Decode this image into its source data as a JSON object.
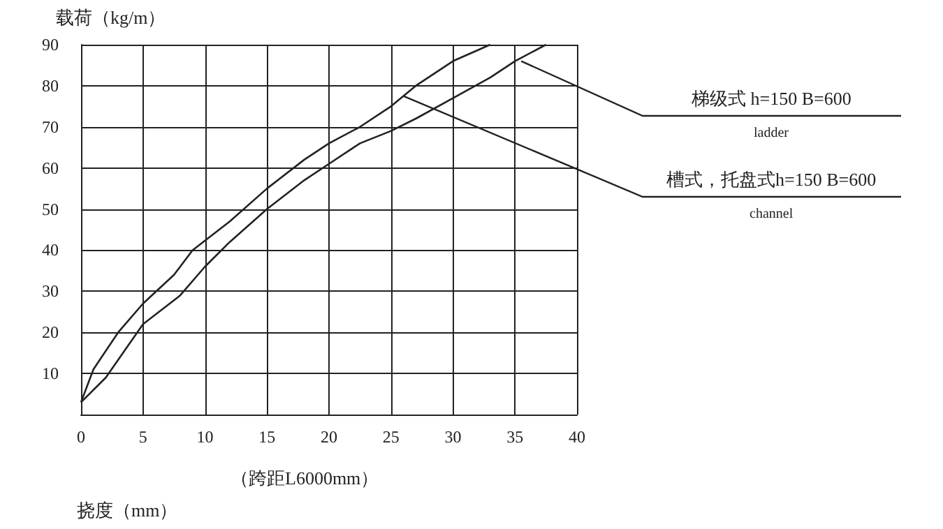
{
  "chart_data": {
    "type": "line",
    "ylabel": "载荷（kg/m）",
    "xlabel": "挠度（mm）",
    "xlim": [
      0,
      40
    ],
    "xticks": [
      0,
      5,
      10,
      15,
      20,
      25,
      30,
      35,
      40
    ],
    "ylim": [
      0,
      90
    ],
    "yticks": [
      10,
      20,
      30,
      40,
      50,
      60,
      70,
      80,
      90
    ],
    "grid": true,
    "legend": false,
    "marker": "none",
    "line_style": "solid",
    "series": [
      {
        "name": "梯级式 h=150 B=600",
        "color": "#222222",
        "x": [
          0,
          2,
          5,
          8,
          10,
          12,
          15,
          18,
          20,
          22.5,
          25,
          27,
          30,
          33,
          35,
          37.5
        ],
        "values": [
          3,
          9,
          22,
          29,
          36,
          42,
          50,
          57,
          61,
          66,
          69,
          72,
          77,
          82,
          86,
          90
        ]
      },
      {
        "name": "槽式，托盘式h=150 B=600",
        "color": "#222222",
        "x": [
          0,
          1,
          3,
          5,
          7.5,
          9,
          12,
          15,
          18,
          20,
          22.5,
          25,
          27,
          30,
          33
        ],
        "values": [
          3,
          11,
          20,
          27,
          34,
          40,
          47,
          55,
          62,
          66,
          70,
          75,
          80,
          86,
          90
        ]
      }
    ],
    "annotations": [
      {
        "text": "ladder",
        "x": 35.5,
        "y": 86
      },
      {
        "text": "channel",
        "x": 26,
        "y": 77.5
      },
      "（跨距L6000mm）"
    ]
  }
}
